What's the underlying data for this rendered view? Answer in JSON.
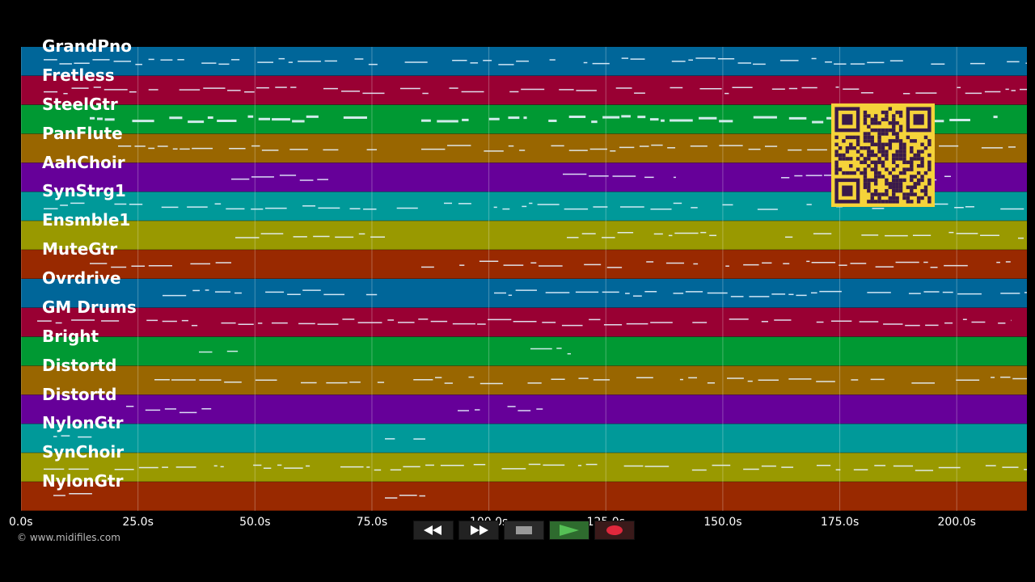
{
  "tracks": [
    {
      "name": "GrandPno",
      "color": "#006699"
    },
    {
      "name": "Fretless",
      "color": "#990033"
    },
    {
      "name": "SteelGtr",
      "color": "#009933"
    },
    {
      "name": "PanFlute",
      "color": "#996600"
    },
    {
      "name": "AahChoir",
      "color": "#660099"
    },
    {
      "name": "SynStrg1",
      "color": "#009999"
    },
    {
      "name": "Ensmble1",
      "color": "#999900"
    },
    {
      "name": "MuteGtr",
      "color": "#992900"
    },
    {
      "name": "Ovrdrive",
      "color": "#006699"
    },
    {
      "name": "GM Drums",
      "color": "#990033"
    },
    {
      "name": "Bright",
      "color": "#009933"
    },
    {
      "name": "Distortd",
      "color": "#996600"
    },
    {
      "name": "Distortd",
      "color": "#660099"
    },
    {
      "name": "NylonGtr",
      "color": "#009999"
    },
    {
      "name": "SynChoir",
      "color": "#999900"
    },
    {
      "name": "NylonGtr",
      "color": "#992900"
    }
  ],
  "time_axis": {
    "ticks": [
      "0.0s",
      "25.0s",
      "50.0s",
      "75.0s",
      "100.0s",
      "125.0s",
      "150.0s",
      "175.0s",
      "200.0s"
    ],
    "tick_values": [
      0,
      25,
      50,
      75,
      100,
      125,
      150,
      175,
      200
    ],
    "max_seconds": 215
  },
  "copyright": "© www.midifiles.com",
  "transport": {
    "rewind_icon": "rewind-icon",
    "fast_forward_icon": "fast-forward-icon",
    "stop_icon": "stop-icon",
    "play_icon": "play-icon",
    "record_icon": "record-icon"
  },
  "colors": {
    "qr_bg": "#f5d33a",
    "qr_fg": "#3a1a4a",
    "note": "#e8f4ff"
  }
}
